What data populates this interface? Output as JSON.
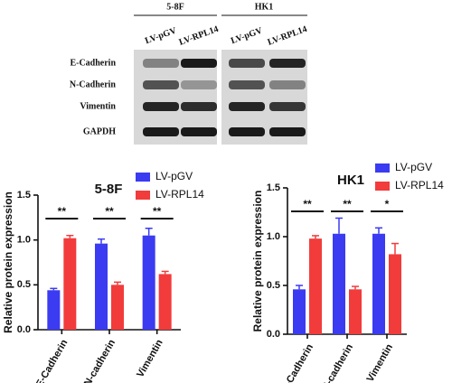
{
  "blot": {
    "groups": [
      "5-8F",
      "HK1"
    ],
    "lanes": [
      "LV-pGV",
      "LV-RPL14",
      "LV-pGV",
      "LV-RPL14"
    ],
    "rows": [
      "E-Cadherin",
      "N-Cadherin",
      "Vimentin",
      "GAPDH"
    ]
  },
  "chart_data": [
    {
      "type": "bar",
      "title": "5-8F",
      "y_label": "Relative protein expression",
      "categories": [
        "E-Cadherin",
        "N-cadherin",
        "Vimentin"
      ],
      "series": [
        {
          "name": "LV-pGV",
          "color": "#3b3bf2",
          "values": [
            0.44,
            0.96,
            1.05
          ],
          "errors": [
            0.02,
            0.05,
            0.08
          ]
        },
        {
          "name": "LV-RPL14",
          "color": "#f23b3b",
          "values": [
            1.02,
            0.5,
            0.62
          ],
          "errors": [
            0.03,
            0.03,
            0.03
          ]
        }
      ],
      "annotations": [
        "**",
        "**",
        "**"
      ],
      "ylim": [
        0,
        1.5
      ],
      "yticks": [
        {
          "value": 0,
          "label": "0.0"
        },
        {
          "value": 0.5,
          "label": "0.5"
        },
        {
          "value": 1,
          "label": "1.0"
        },
        {
          "value": 1.5,
          "label": "1.5"
        }
      ]
    },
    {
      "type": "bar",
      "title": "HK1",
      "y_label": "Relative protein expression",
      "categories": [
        "E-Cadherin",
        "N-cadherin",
        "Vimentin"
      ],
      "series": [
        {
          "name": "LV-pGV",
          "color": "#3b3bf2",
          "values": [
            0.46,
            1.03,
            1.03
          ],
          "errors": [
            0.04,
            0.16,
            0.06
          ]
        },
        {
          "name": "LV-RPL14",
          "color": "#f23b3b",
          "values": [
            0.98,
            0.46,
            0.82
          ],
          "errors": [
            0.03,
            0.03,
            0.11
          ]
        }
      ],
      "annotations": [
        "**",
        "**",
        "*"
      ],
      "ylim": [
        0,
        1.5
      ],
      "yticks": [
        {
          "value": 0,
          "label": "0.0"
        },
        {
          "value": 0.5,
          "label": "0.5"
        },
        {
          "value": 1,
          "label": "1.0"
        },
        {
          "value": 1.5,
          "label": "1.5"
        }
      ]
    }
  ]
}
